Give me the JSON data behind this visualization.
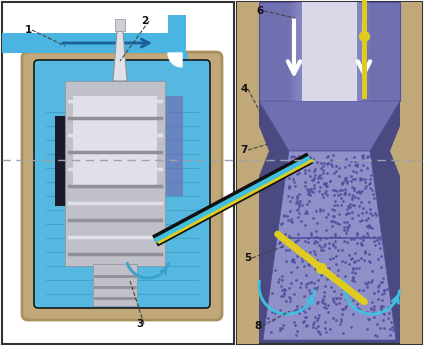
{
  "bg": "#ffffff",
  "blue_pipe": "#4ab5e0",
  "blue_mid": "#3aa0cc",
  "blue_fluid": "#55b8e0",
  "blue_fluid_dark": "#3090b8",
  "beige": "#c0a878",
  "beige_dark": "#a89060",
  "silver": "#c0c0c8",
  "silver_dark": "#909098",
  "silver_light": "#e0e0e8",
  "dark": "#1a1a2a",
  "purple": "#7070b0",
  "purple_dark": "#5050a0",
  "purple_light": "#9090c8",
  "purple_bg": "#4a4a80",
  "yellow": "#e0cc20",
  "white": "#ffffff",
  "cyan": "#40c0e0",
  "dot": "#5050a0",
  "gray_line": "#a0a0b0",
  "label_color": "#111111",
  "left_bg": "#ffffff",
  "panel_border": "#333333",
  "fluid_lines": "#3888b0",
  "needle_silver": "#b0b0c0",
  "black": "#111111"
}
